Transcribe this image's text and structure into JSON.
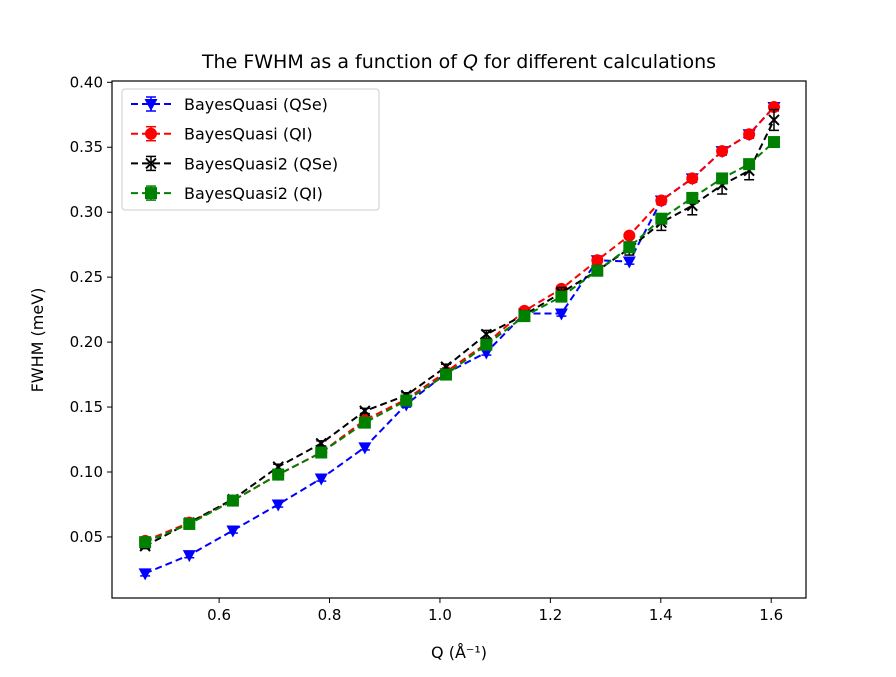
{
  "chart_data": {
    "type": "line",
    "title": "The FWHM as a function of Q for different calculations",
    "title_prefix": "The FWHM as a function of ",
    "title_var": "Q",
    "title_suffix": " for different calculations",
    "xlabel": "Q (Å⁻¹)",
    "xlabel_prefix": "Q (",
    "xlabel_unit": "Å",
    "xlabel_exp": "−1",
    "xlabel_suffix": ")",
    "ylabel": "FWHM (meV)",
    "xlim": [
      0.406,
      1.663
    ],
    "ylim": [
      0.003,
      0.401
    ],
    "xticks": [
      0.6,
      0.8,
      1.0,
      1.2,
      1.4,
      1.6
    ],
    "xtick_labels": [
      "0.6",
      "0.8",
      "1.0",
      "1.2",
      "1.4",
      "1.6"
    ],
    "yticks": [
      0.05,
      0.1,
      0.15,
      0.2,
      0.25,
      0.3,
      0.35,
      0.4
    ],
    "ytick_labels": [
      "0.05",
      "0.10",
      "0.15",
      "0.20",
      "0.25",
      "0.30",
      "0.35",
      "0.40"
    ],
    "grid": false,
    "legend_placement": "upper-left",
    "x": [
      0.466,
      0.546,
      0.625,
      0.707,
      0.785,
      0.864,
      0.939,
      1.011,
      1.084,
      1.153,
      1.22,
      1.285,
      1.343,
      1.401,
      1.457,
      1.511,
      1.56,
      1.605
    ],
    "series": [
      {
        "name": "BayesQuasi (QSe)",
        "color": "#0000ff",
        "marker": "triangle-down",
        "values": [
          0.022,
          0.036,
          0.055,
          0.075,
          0.095,
          0.119,
          0.152,
          0.176,
          0.192,
          0.222,
          0.222,
          0.263,
          0.262,
          0.309,
          0.326,
          0.347,
          0.36,
          0.381
        ],
        "errors": [
          0.002,
          0.002,
          0.002,
          0.002,
          0.002,
          0.002,
          0.002,
          0.002,
          0.002,
          0.002,
          0.002,
          0.002,
          0.002,
          0.003,
          0.003,
          0.003,
          0.003,
          0.003
        ]
      },
      {
        "name": "BayesQuasi (QI)",
        "color": "#ff0000",
        "marker": "circle",
        "values": [
          0.047,
          0.061,
          0.078,
          0.098,
          0.115,
          0.14,
          0.156,
          0.177,
          0.199,
          0.224,
          0.241,
          0.263,
          0.282,
          0.309,
          0.326,
          0.347,
          0.36,
          0.381
        ],
        "errors": [
          0.002,
          0.002,
          0.002,
          0.002,
          0.002,
          0.002,
          0.002,
          0.002,
          0.002,
          0.002,
          0.002,
          0.002,
          0.002,
          0.002,
          0.002,
          0.002,
          0.002,
          0.002
        ]
      },
      {
        "name": "BayesQuasi2 (QSe)",
        "color": "#000000",
        "marker": "x",
        "values": [
          0.043,
          0.061,
          0.079,
          0.104,
          0.122,
          0.147,
          0.159,
          0.181,
          0.206,
          0.221,
          0.238,
          0.255,
          0.272,
          0.292,
          0.305,
          0.321,
          0.332,
          0.371
        ],
        "errors": [
          0.002,
          0.002,
          0.002,
          0.002,
          0.002,
          0.002,
          0.002,
          0.002,
          0.003,
          0.003,
          0.004,
          0.004,
          0.005,
          0.006,
          0.007,
          0.007,
          0.007,
          0.008
        ]
      },
      {
        "name": "BayesQuasi2 (QI)",
        "color": "#008000",
        "marker": "square",
        "values": [
          0.046,
          0.06,
          0.078,
          0.098,
          0.115,
          0.138,
          0.155,
          0.175,
          0.198,
          0.22,
          0.235,
          0.255,
          0.273,
          0.295,
          0.311,
          0.326,
          0.337,
          0.354
        ],
        "errors": [
          0.002,
          0.002,
          0.002,
          0.002,
          0.002,
          0.002,
          0.002,
          0.002,
          0.002,
          0.002,
          0.002,
          0.002,
          0.002,
          0.002,
          0.002,
          0.002,
          0.002,
          0.002
        ]
      }
    ]
  }
}
